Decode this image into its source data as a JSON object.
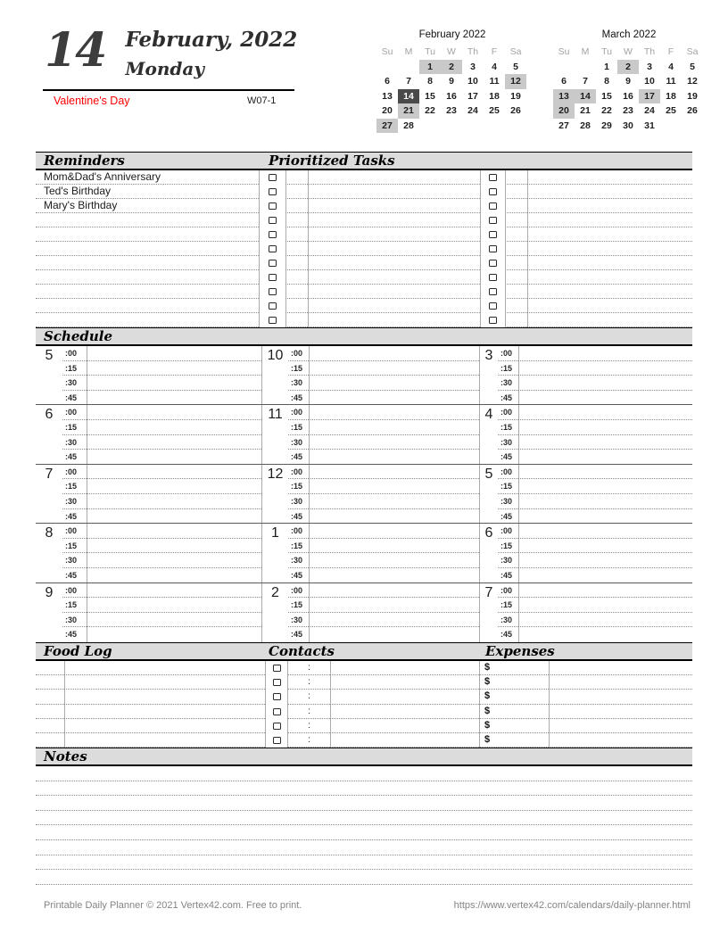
{
  "header": {
    "day_number": "14",
    "month_year": "February, 2022",
    "weekday": "Monday",
    "holiday": "Valentine's Day",
    "week_code": "W07-1"
  },
  "mini_calendars": [
    {
      "title": "February 2022",
      "day_headers": [
        "Su",
        "M",
        "Tu",
        "W",
        "Th",
        "F",
        "Sa"
      ],
      "weeks": [
        [
          "",
          "",
          1,
          2,
          3,
          4,
          5
        ],
        [
          6,
          7,
          8,
          9,
          10,
          11,
          12
        ],
        [
          13,
          14,
          15,
          16,
          17,
          18,
          19
        ],
        [
          20,
          21,
          22,
          23,
          24,
          25,
          26
        ],
        [
          27,
          28,
          "",
          "",
          "",
          "",
          ""
        ]
      ],
      "highlighted_days": [
        1,
        2,
        12,
        21,
        27
      ],
      "selected_days": [
        14
      ]
    },
    {
      "title": "March 2022",
      "day_headers": [
        "Su",
        "M",
        "Tu",
        "W",
        "Th",
        "F",
        "Sa"
      ],
      "weeks": [
        [
          "",
          "",
          1,
          2,
          3,
          4,
          5
        ],
        [
          6,
          7,
          8,
          9,
          10,
          11,
          12
        ],
        [
          13,
          14,
          15,
          16,
          17,
          18,
          19
        ],
        [
          20,
          21,
          22,
          23,
          24,
          25,
          26
        ],
        [
          27,
          28,
          29,
          30,
          31,
          "",
          ""
        ]
      ],
      "highlighted_days": [
        2,
        13,
        14,
        17,
        20
      ],
      "selected_days": []
    }
  ],
  "sections": {
    "reminders": {
      "title": "Reminders",
      "items": [
        "Mom&Dad's Anniversary",
        "Ted's Birthday",
        "Mary's Birthday"
      ],
      "row_count": 11
    },
    "tasks": {
      "title": "Prioritized Tasks",
      "row_count": 11,
      "checkbox_icon": "checkbox-square"
    },
    "schedule": {
      "title": "Schedule",
      "hour_columns": [
        [
          "5",
          "6",
          "7",
          "8",
          "9"
        ],
        [
          "10",
          "11",
          "12",
          "1",
          "2"
        ],
        [
          "3",
          "4",
          "5",
          "6",
          "7"
        ]
      ],
      "quarter_labels": [
        ":00",
        ":15",
        ":30",
        ":45"
      ]
    },
    "food_log": {
      "title": "Food Log",
      "row_count": 6
    },
    "contacts": {
      "title": "Contacts",
      "row_count": 6,
      "time_separator": ":"
    },
    "expenses": {
      "title": "Expenses",
      "row_count": 6,
      "currency_symbol": "$"
    },
    "notes": {
      "title": "Notes",
      "row_count": 8
    }
  },
  "colors": {
    "holiday_red": "#fe0000",
    "band_gray": "#dcdcdc",
    "calendar_highlight": "#c9c9c9",
    "calendar_selected": "#4a4a4a",
    "footer_gray": "#848484"
  },
  "footer": {
    "left": "Printable Daily Planner © 2021 Vertex42.com. Free to print.",
    "right": "https://www.vertex42.com/calendars/daily-planner.html"
  }
}
